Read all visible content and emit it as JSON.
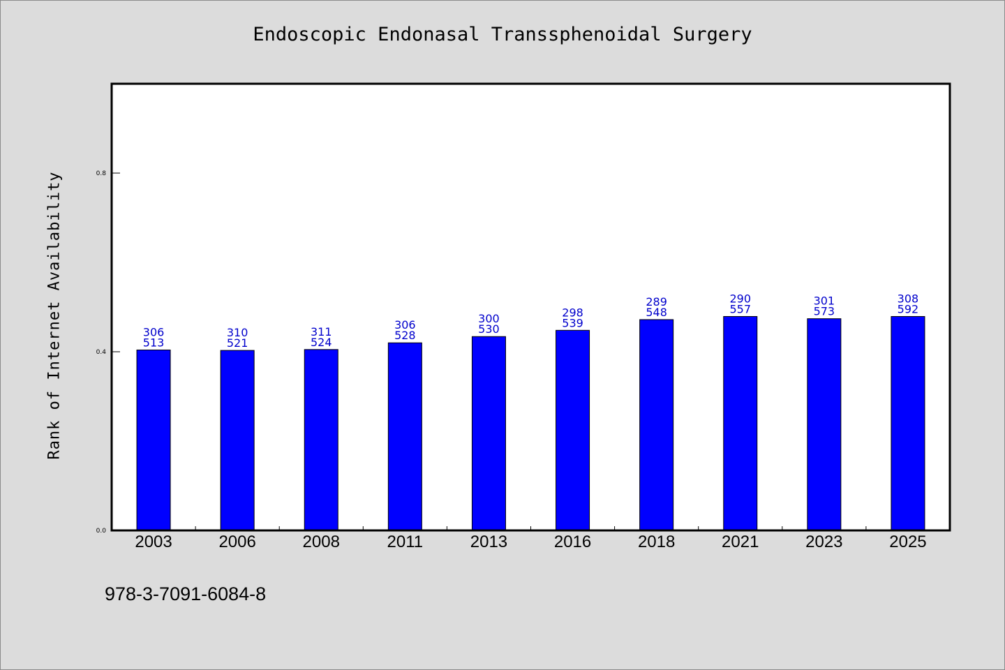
{
  "chart_data": {
    "type": "bar",
    "title": "Endoscopic Endonasal Transsphenoidal Surgery",
    "ylabel": "Rank of Internet Availability",
    "xlabel": "",
    "ylim": [
      0,
      1.0
    ],
    "yticks": [
      "0.0",
      "0.4",
      "0.8"
    ],
    "categories": [
      "2003",
      "2006",
      "2008",
      "2011",
      "2013",
      "2016",
      "2018",
      "2021",
      "2023",
      "2025"
    ],
    "values": [
      0.404,
      0.403,
      0.405,
      0.42,
      0.434,
      0.448,
      0.472,
      0.479,
      0.474,
      0.479
    ],
    "data_labels": [
      [
        "306",
        "513"
      ],
      [
        "310",
        "521"
      ],
      [
        "311",
        "524"
      ],
      [
        "306",
        "528"
      ],
      [
        "300",
        "530"
      ],
      [
        "298",
        "539"
      ],
      [
        "289",
        "548"
      ],
      [
        "290",
        "557"
      ],
      [
        "301",
        "573"
      ],
      [
        "308",
        "592"
      ]
    ],
    "bar_color": "#0000ff",
    "label_color": "#0000cc",
    "grid": false
  },
  "footer": {
    "isbn": "978-3-7091-6084-8"
  }
}
